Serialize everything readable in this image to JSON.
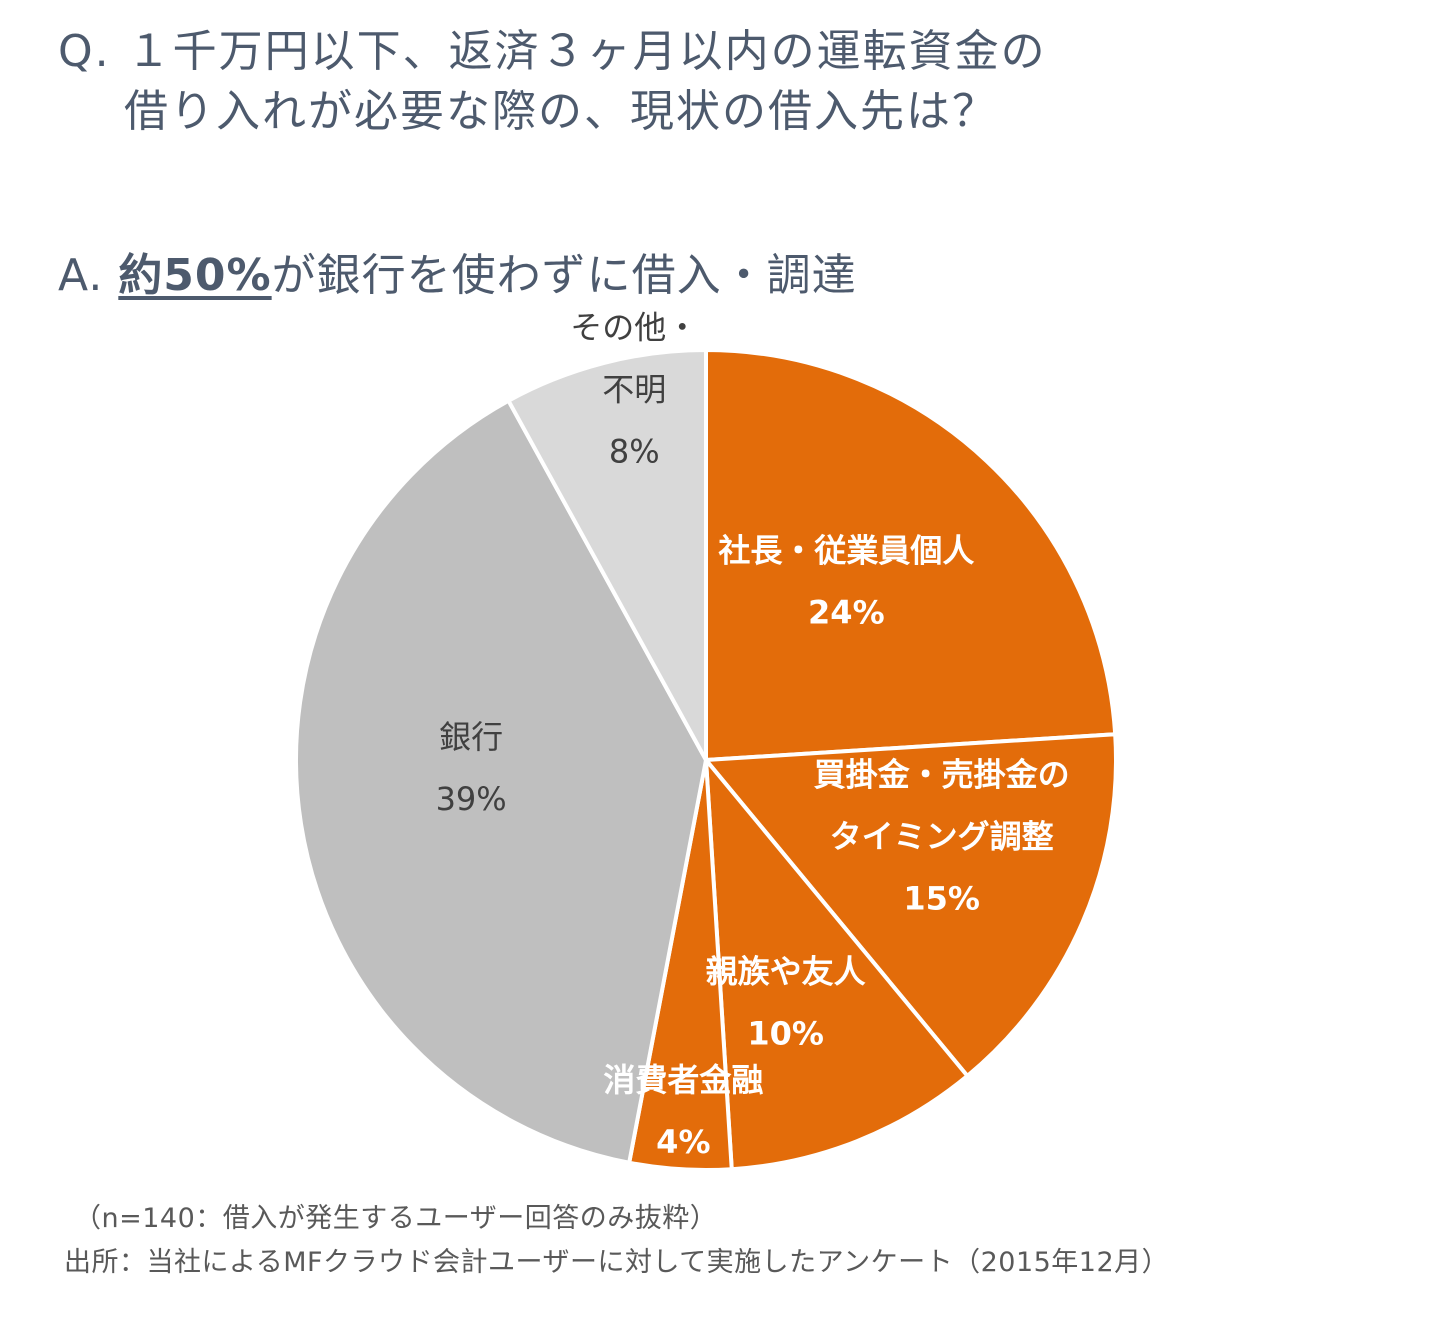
{
  "question": {
    "line1": "Q. １千万円以下、返済３ヶ月以内の運転資金の",
    "line2": "借り入れが必要な際の、現状の借入先は？"
  },
  "answer": {
    "prefix": "A. ",
    "emphasis": "約50%",
    "rest": "が銀行を使わずに借入・調達"
  },
  "chart_data": {
    "type": "pie",
    "start_angle_deg": 0,
    "direction": "clockwise",
    "slices": [
      {
        "label_lines": [
          "社長・従業員個人"
        ],
        "value": 24,
        "value_label": "24%",
        "color": "#e36c0a"
      },
      {
        "label_lines": [
          "買掛金・売掛金の",
          "タイミング調整"
        ],
        "value": 15,
        "value_label": "15%",
        "color": "#e36c0a"
      },
      {
        "label_lines": [
          "親族や友人"
        ],
        "value": 10,
        "value_label": "10%",
        "color": "#e36c0a"
      },
      {
        "label_lines": [
          "消費者金融"
        ],
        "value": 4,
        "value_label": "4%",
        "color": "#e36c0a"
      },
      {
        "label_lines": [
          "銀行"
        ],
        "value": 39,
        "value_label": "39%",
        "color": "#bfbfbf"
      },
      {
        "label_lines": [
          "その他・",
          "不明"
        ],
        "value": 8,
        "value_label": "8%",
        "color": "#d9d9d9"
      }
    ]
  },
  "notes": {
    "line1": "（n=140：借入が発生するユーザー回答のみ抜粋）",
    "line2": "出所：当社によるMFクラウド会計ユーザーに対して実施したアンケート（2015年12月）"
  }
}
